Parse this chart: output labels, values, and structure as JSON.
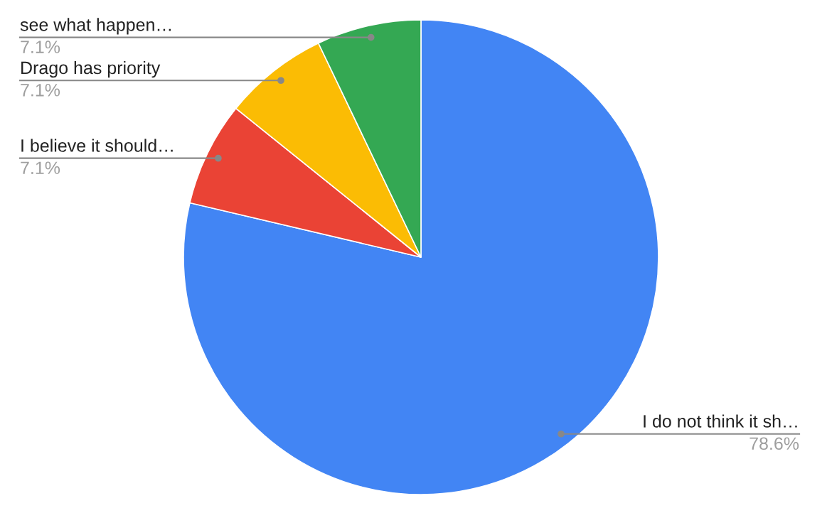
{
  "chart_data": {
    "type": "pie",
    "categories": [
      "I do not think it sh…",
      "I believe it should…",
      "Drago has priority",
      "see what happen…"
    ],
    "values": [
      78.6,
      7.1,
      7.1,
      7.1
    ],
    "colors": [
      "#4285f4",
      "#ea4335",
      "#fbbc04",
      "#34a853"
    ],
    "value_labels": [
      "78.6%",
      "7.1%",
      "7.1%",
      "7.1%"
    ]
  }
}
